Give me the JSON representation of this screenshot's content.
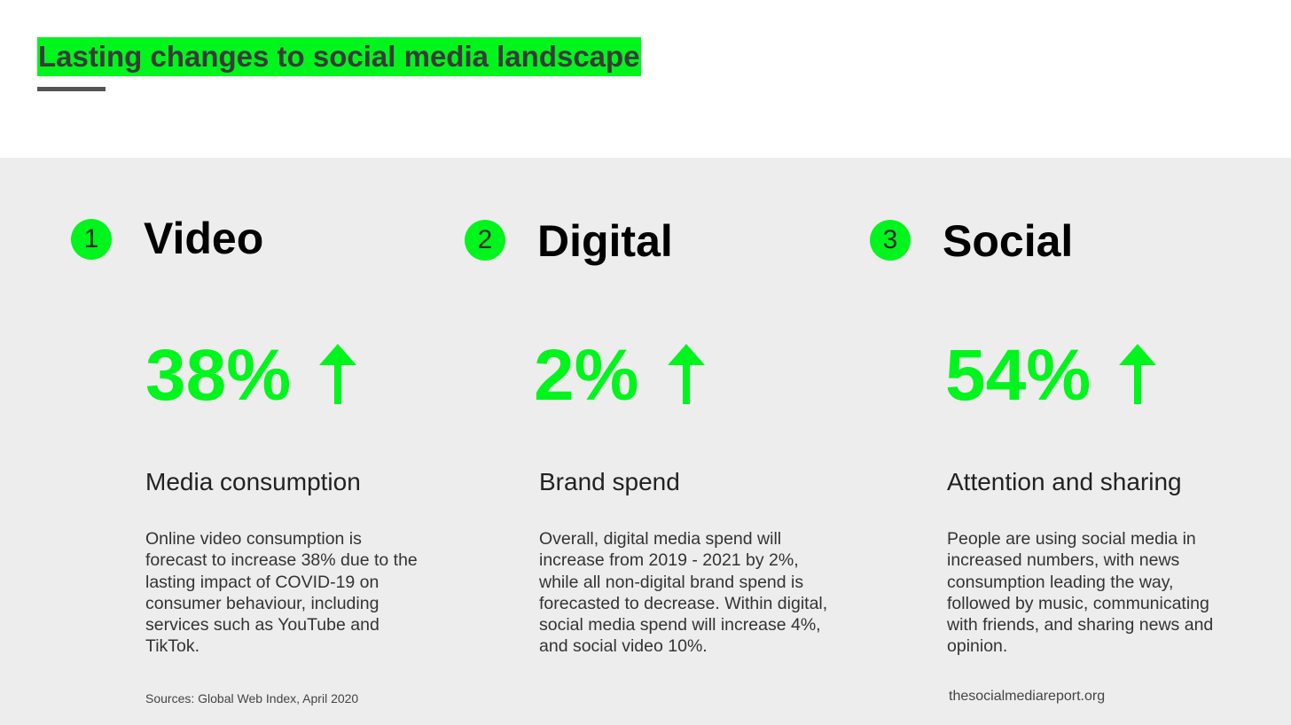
{
  "slide": {
    "title": "Lasting changes to social media landscape",
    "colors": {
      "accent": "#00f51d",
      "panel": "#ededed",
      "underline": "#555555"
    }
  },
  "columns": [
    {
      "number": "1",
      "heading": "Video",
      "stat": "38%",
      "trend_icon": "arrow-up-icon",
      "subtitle": "Media consumption",
      "body": "Online video consumption is forecast to increase 38% due to the lasting impact of COVID-19 on consumer behaviour, including services such as YouTube and TikTok."
    },
    {
      "number": "2",
      "heading": "Digital",
      "stat": "2%",
      "trend_icon": "arrow-up-icon",
      "subtitle": "Brand spend",
      "body": "Overall, digital media spend will increase from 2019 - 2021 by 2%, while all non-digital brand spend is forecasted to decrease. Within digital, social media spend will increase 4%, and social video 10%."
    },
    {
      "number": "3",
      "heading": "Social",
      "stat": "54%",
      "trend_icon": "arrow-up-icon",
      "subtitle": "Attention and sharing",
      "body": "People are using social media in increased numbers, with news consumption leading the way, followed by music, communicating with friends, and sharing news and opinion."
    }
  ],
  "footer": {
    "sources": "Sources: Global Web Index, April 2020",
    "website": "thesocialmediareport.org"
  }
}
